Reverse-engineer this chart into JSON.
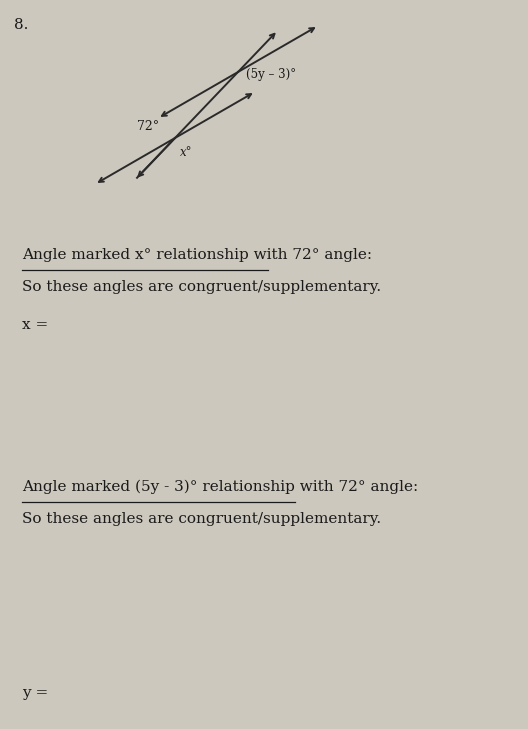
{
  "background_color": "#cdc8be",
  "problem_number": "8.",
  "text_color": "#1a1a1a",
  "line_color": "#2a2a2a",
  "font_size_main": 11.0,
  "diagram": {
    "label_72": "72°",
    "label_x": "x°",
    "label_5y3": "(5y – 3)°"
  },
  "section1": {
    "line1": "Angle marked x° relationship with 72° angle:",
    "line2": "So these angles are congruent/supplementary.",
    "line3": "x ="
  },
  "section2": {
    "line1": "Angle marked (5y - 3)° relationship with 72° angle:",
    "line2": "So these angles are congruent/supplementary.",
    "line3": "y ="
  }
}
